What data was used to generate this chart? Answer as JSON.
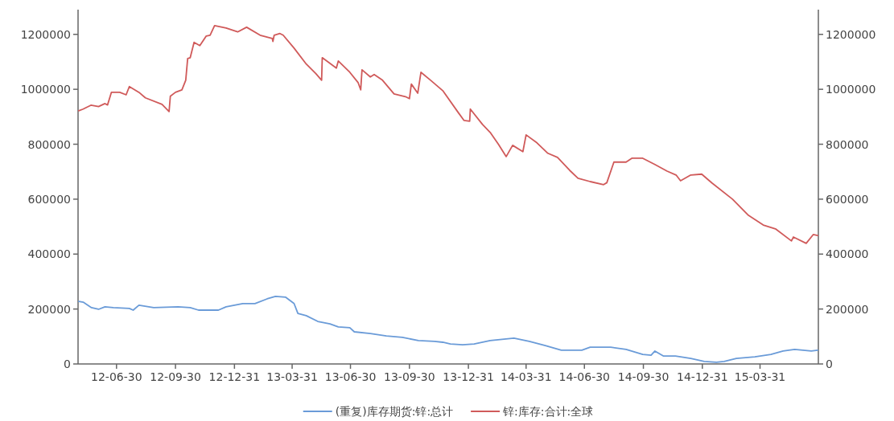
{
  "chart_data": {
    "type": "line",
    "xlim": [
      "2012-05-01",
      "2015-06-30"
    ],
    "xticks": [
      {
        "value": "2012-06-30",
        "label": "12-06-30"
      },
      {
        "value": "2012-09-30",
        "label": "12-09-30"
      },
      {
        "value": "2012-12-31",
        "label": "12-12-31"
      },
      {
        "value": "2013-03-31",
        "label": "13-03-31"
      },
      {
        "value": "2013-06-30",
        "label": "13-06-30"
      },
      {
        "value": "2013-09-30",
        "label": "13-09-30"
      },
      {
        "value": "2013-12-31",
        "label": "13-12-31"
      },
      {
        "value": "2014-03-31",
        "label": "14-03-31"
      },
      {
        "value": "2014-06-30",
        "label": "14-06-30"
      },
      {
        "value": "2014-09-30",
        "label": "14-09-30"
      },
      {
        "value": "2014-12-31",
        "label": "14-12-31"
      },
      {
        "value": "2015-03-31",
        "label": "15-03-31"
      }
    ],
    "ylim": [
      0,
      1290000
    ],
    "yticks": [
      0,
      200000,
      400000,
      600000,
      800000,
      1000000,
      1200000
    ],
    "y2lim": [
      0,
      1290000
    ],
    "y2ticks": [
      0,
      200000,
      400000,
      600000,
      800000,
      1000000,
      1200000
    ],
    "legend": "bottom",
    "series": [
      {
        "name": "(重复)库存期货:锌:总计",
        "color": "#6a9bd8",
        "x": [
          "2012-05-02",
          "2012-05-09",
          "2012-05-22",
          "2012-06-02",
          "2012-06-12",
          "2012-06-25",
          "2012-07-20",
          "2012-07-26",
          "2012-08-04",
          "2012-08-27",
          "2012-10-04",
          "2012-10-23",
          "2012-11-05",
          "2012-12-06",
          "2012-12-18",
          "2013-01-13",
          "2013-02-01",
          "2013-02-20",
          "2013-03-05",
          "2013-03-21",
          "2013-04-03",
          "2013-04-09",
          "2013-04-22",
          "2013-05-10",
          "2013-05-29",
          "2013-06-11",
          "2013-06-29",
          "2013-07-06",
          "2013-07-31",
          "2013-08-25",
          "2013-09-19",
          "2013-10-14",
          "2013-11-08",
          "2013-11-21",
          "2013-12-03",
          "2013-12-22",
          "2014-01-09",
          "2014-02-03",
          "2014-03-12",
          "2014-04-05",
          "2014-04-30",
          "2014-05-25",
          "2014-06-26",
          "2014-07-09",
          "2014-08-10",
          "2014-09-03",
          "2014-09-29",
          "2014-10-12",
          "2014-10-18",
          "2014-10-31",
          "2014-11-19",
          "2014-12-13",
          "2015-01-03",
          "2015-01-22",
          "2015-02-03",
          "2015-02-22",
          "2015-03-23",
          "2015-04-17",
          "2015-05-06",
          "2015-05-24",
          "2015-06-19",
          "2015-06-29"
        ],
        "values": [
          228000,
          225000,
          205000,
          199000,
          208000,
          205000,
          202000,
          196000,
          214000,
          205000,
          208000,
          205000,
          196000,
          196000,
          208000,
          220000,
          220000,
          237000,
          246000,
          243000,
          220000,
          184000,
          176000,
          155000,
          146000,
          135000,
          132000,
          117000,
          111000,
          102000,
          97000,
          85000,
          82000,
          79000,
          73000,
          70000,
          73000,
          85000,
          94000,
          82000,
          67000,
          50000,
          50000,
          61000,
          61000,
          53000,
          35000,
          32000,
          47000,
          29000,
          29000,
          20000,
          9000,
          6000,
          9000,
          20000,
          26000,
          35000,
          47000,
          53000,
          47000,
          50000
        ]
      },
      {
        "name": "锌:库存:合计:全球",
        "color": "#d05a5a",
        "x": [
          "2012-05-02",
          "2012-05-09",
          "2012-05-21",
          "2012-06-02",
          "2012-06-12",
          "2012-06-16",
          "2012-06-22",
          "2012-07-05",
          "2012-07-15",
          "2012-07-20",
          "2012-08-04",
          "2012-08-14",
          "2012-09-09",
          "2012-09-20",
          "2012-09-22",
          "2012-09-30",
          "2012-10-10",
          "2012-10-16",
          "2012-10-19",
          "2012-10-23",
          "2012-10-29",
          "2012-11-07",
          "2012-11-17",
          "2012-11-23",
          "2012-11-30",
          "2012-12-18",
          "2013-01-05",
          "2013-01-19",
          "2013-02-09",
          "2013-02-28",
          "2013-03-01",
          "2013-03-03",
          "2013-03-12",
          "2013-03-17",
          "2013-04-03",
          "2013-04-22",
          "2013-05-07",
          "2013-05-16",
          "2013-05-17",
          "2013-06-08",
          "2013-06-11",
          "2013-06-29",
          "2013-07-12",
          "2013-07-16",
          "2013-07-18",
          "2013-07-31",
          "2013-08-06",
          "2013-08-19",
          "2013-09-06",
          "2013-09-25",
          "2013-09-30",
          "2013-10-03",
          "2013-10-13",
          "2013-10-18",
          "2013-11-02",
          "2013-11-21",
          "2013-12-15",
          "2013-12-24",
          "2014-01-02",
          "2014-01-03",
          "2014-01-22",
          "2014-02-03",
          "2014-02-16",
          "2014-02-28",
          "2014-03-10",
          "2014-03-26",
          "2014-03-31",
          "2014-04-17",
          "2014-05-04",
          "2014-05-19",
          "2014-06-07",
          "2014-06-20",
          "2014-07-09",
          "2014-07-30",
          "2014-08-04",
          "2014-08-15",
          "2014-09-03",
          "2014-09-12",
          "2014-09-29",
          "2014-10-18",
          "2014-11-06",
          "2014-11-20",
          "2014-11-27",
          "2014-12-13",
          "2014-12-30",
          "2015-01-15",
          "2015-02-16",
          "2015-03-13",
          "2015-04-05",
          "2015-04-24",
          "2015-05-19",
          "2015-05-22",
          "2015-06-11",
          "2015-06-22",
          "2015-06-29"
        ],
        "values": [
          922000,
          928000,
          942000,
          937000,
          948000,
          943000,
          989000,
          989000,
          980000,
          1010000,
          989000,
          969000,
          945000,
          919000,
          975000,
          989000,
          998000,
          1033000,
          1112000,
          1115000,
          1171000,
          1159000,
          1194000,
          1197000,
          1232000,
          1223000,
          1209000,
          1226000,
          1197000,
          1185000,
          1174000,
          1197000,
          1203000,
          1197000,
          1150000,
          1092000,
          1057000,
          1033000,
          1115000,
          1077000,
          1103000,
          1062000,
          1024000,
          998000,
          1071000,
          1045000,
          1054000,
          1033000,
          983000,
          972000,
          966000,
          1019000,
          986000,
          1062000,
          1033000,
          995000,
          916000,
          887000,
          884000,
          928000,
          872000,
          843000,
          799000,
          755000,
          796000,
          773000,
          834000,
          805000,
          767000,
          752000,
          705000,
          676000,
          664000,
          653000,
          660000,
          735000,
          735000,
          749000,
          749000,
          726000,
          702000,
          688000,
          667000,
          688000,
          691000,
          659000,
          600000,
          541000,
          506000,
          492000,
          448000,
          462000,
          439000,
          471000,
          468000
        ]
      }
    ]
  }
}
